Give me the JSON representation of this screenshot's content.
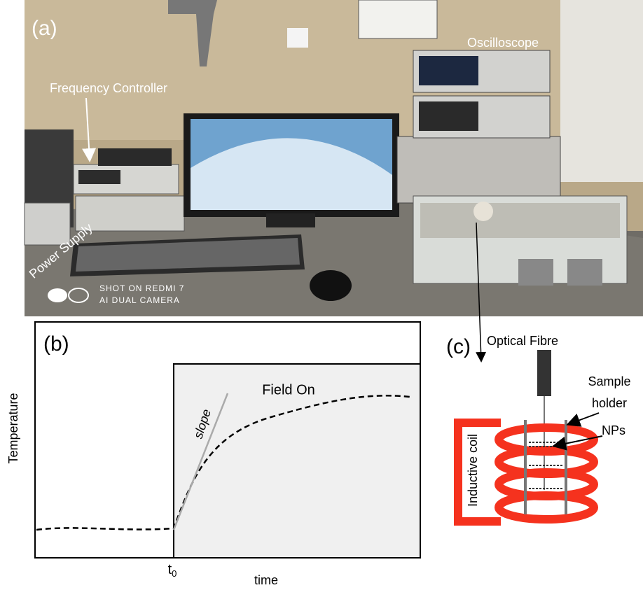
{
  "panel_a": {
    "label": "(a)",
    "oscilloscope": "Oscilloscope",
    "frequency_controller": "Frequency Controller",
    "power_supply": "Power Supply",
    "watermark": [
      "SHOT ON REDMI 7",
      "AI DUAL CAMERA"
    ]
  },
  "panel_b": {
    "label": "(b)",
    "y_label": "Temperature",
    "x_label": "time",
    "field_on": "Field On",
    "slope": "slope",
    "t0": {
      "base": "t",
      "sub": "0"
    }
  },
  "panel_c": {
    "label": "(c)",
    "optical_fibre": "Optical Fibre",
    "sample_holder": [
      "Sample",
      "holder"
    ],
    "nps": "NPs",
    "inductive_coil": "Inductive coil"
  }
}
